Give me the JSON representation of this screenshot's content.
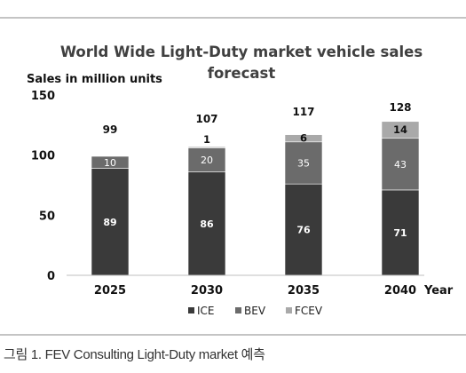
{
  "chart_data": {
    "type": "bar",
    "stacked": true,
    "title": "World Wide Light-Duty market vehicle sales forecast",
    "ylabel": "Sales in million units",
    "xlabel": "Year",
    "categories": [
      "2025",
      "2030",
      "2035",
      "2040"
    ],
    "series": [
      {
        "name": "ICE",
        "values": [
          89,
          86,
          76,
          71
        ],
        "color": "#3a3a3a"
      },
      {
        "name": "BEV",
        "values": [
          10,
          20,
          35,
          43
        ],
        "color": "#6b6b6b"
      },
      {
        "name": "FCEV",
        "values": [
          0,
          1,
          6,
          14
        ],
        "color": "#a9a9a9"
      }
    ],
    "totals": [
      99,
      107,
      117,
      128
    ],
    "fcev_labels": [
      "",
      "1",
      "6",
      "14"
    ],
    "ylim": [
      0,
      150
    ],
    "yticks": [
      0,
      50,
      100,
      150
    ],
    "grid": false,
    "legend_position": "bottom"
  },
  "caption": "그림 1. FEV Consulting Light-Duty market 예측"
}
